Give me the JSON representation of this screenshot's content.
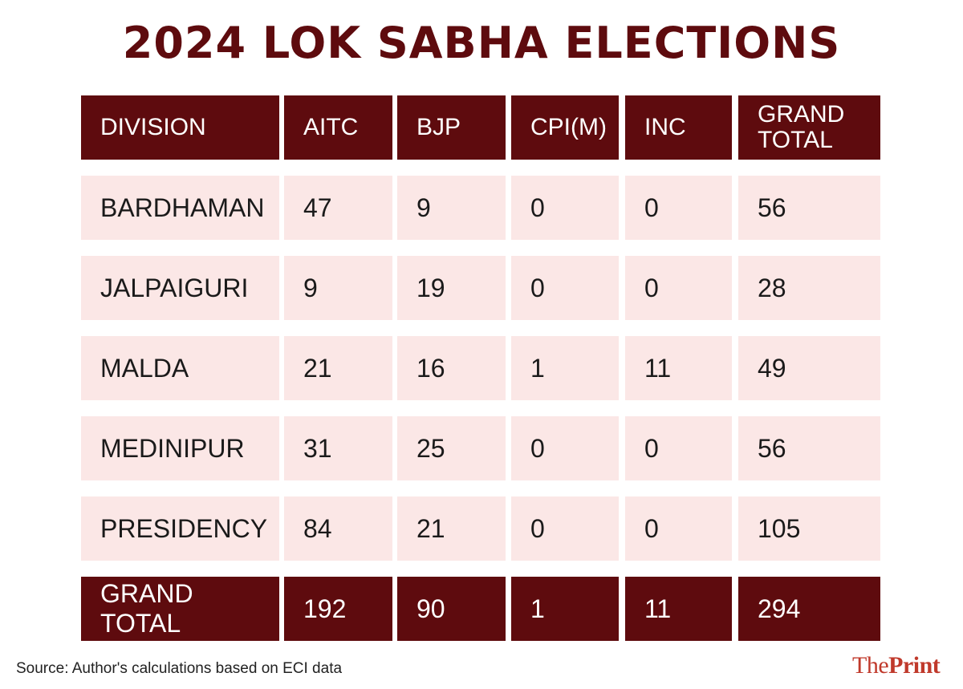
{
  "title": "2024 LOK SABHA ELECTIONS",
  "chart_data": {
    "type": "table",
    "title": "2024 LOK SABHA ELECTIONS",
    "columns": [
      "DIVISION",
      "AITC",
      "BJP",
      "CPI(M)",
      "INC",
      "GRAND TOTAL"
    ],
    "rows": [
      [
        "BARDHAMAN",
        "47",
        "9",
        "0",
        "0",
        "56"
      ],
      [
        "JALPAIGURI",
        "9",
        "19",
        "0",
        "0",
        "28"
      ],
      [
        "MALDA",
        "21",
        "16",
        "1",
        "11",
        "49"
      ],
      [
        "MEDINIPUR",
        "31",
        "25",
        "0",
        "0",
        "56"
      ],
      [
        "PRESIDENCY",
        "84",
        "21",
        "0",
        "0",
        "105"
      ]
    ],
    "total_row": [
      "GRAND TOTAL",
      "192",
      "90",
      "1",
      "11",
      "294"
    ]
  },
  "source": "Source: Author's calculations based on ECI data",
  "logo": {
    "part1": "The",
    "part2": "Print"
  },
  "colors": {
    "header": "#5e0b0e",
    "row": "#fbe7e6",
    "title": "#5e0b0e",
    "logo": "#c0392b"
  }
}
